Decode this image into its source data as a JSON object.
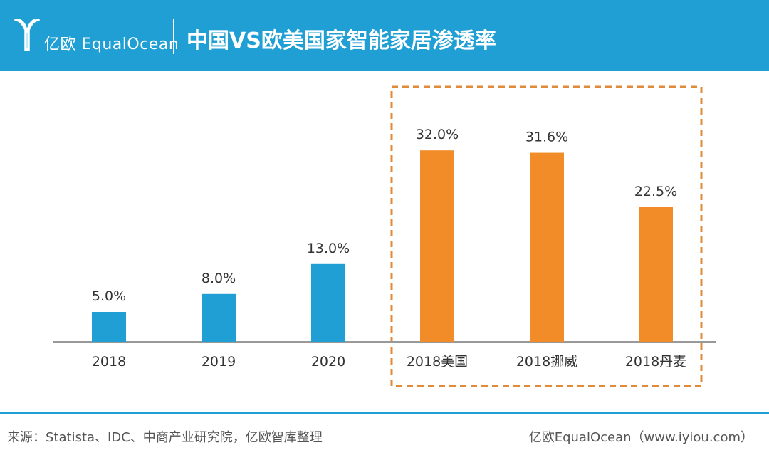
{
  "header": {
    "brand": "亿欧 EqualOcean",
    "title": "中国VS欧美国家智能家居渗透率",
    "logo_icon": "equalocean-logo-icon",
    "bg_color": "#1f9fd3"
  },
  "chart_data": {
    "type": "bar",
    "title": "中国VS欧美国家智能家居渗透率",
    "xlabel": "",
    "ylabel": "",
    "categories": [
      "2018",
      "2019",
      "2020",
      "2018美国",
      "2018挪威",
      "2018丹麦"
    ],
    "values": [
      5.0,
      8.0,
      13.0,
      32.0,
      31.6,
      22.5
    ],
    "data_labels": [
      "5.0%",
      "8.0%",
      "13.0%",
      "32.0%",
      "31.6%",
      "22.5%"
    ],
    "colors": [
      "#1f9fd3",
      "#1f9fd3",
      "#1f9fd3",
      "#f28c28",
      "#f28c28",
      "#f28c28"
    ],
    "highlight_group": {
      "categories": [
        "2018美国",
        "2018挪威",
        "2018丹麦"
      ],
      "style": "dashed-box",
      "color": "#e08a3a"
    },
    "grid": false,
    "legend": "none"
  },
  "footer": {
    "source": "来源：Statista、IDC、中商产业研究院，亿欧智库整理",
    "credit": "亿欧EqualOcean（www.iyiou.com）",
    "line_color": "#1f9fd3"
  }
}
